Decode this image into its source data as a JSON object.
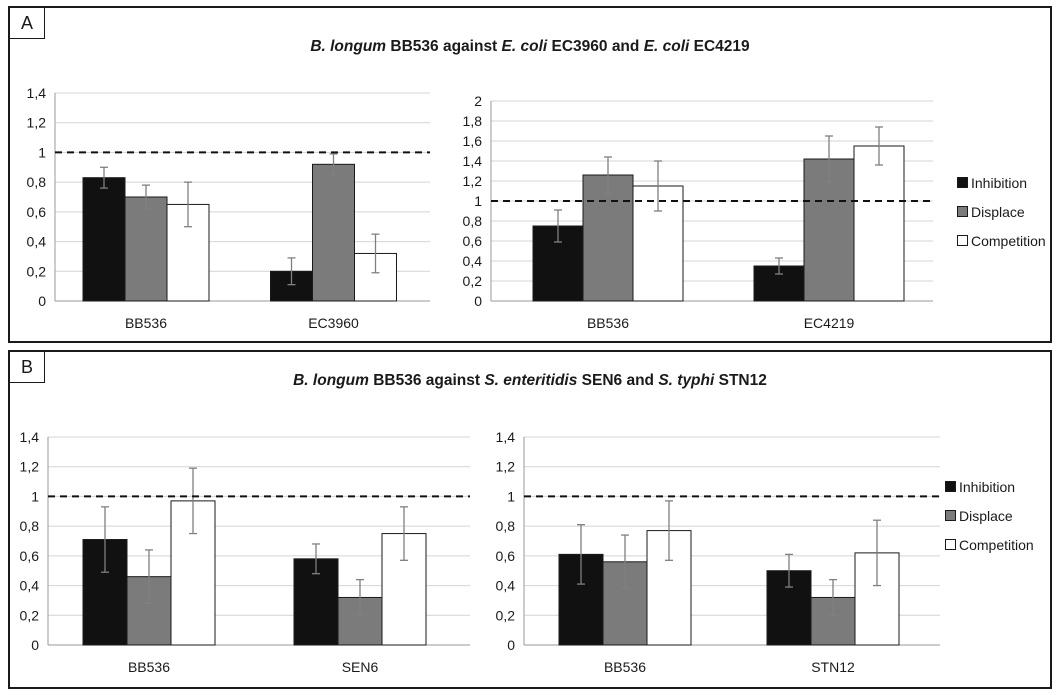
{
  "colors": {
    "inhibition": "#111111",
    "displace": "#7b7b7b",
    "competition": "#ffffff",
    "grid": "#d4d4d4",
    "axis": "#9a9a9a"
  },
  "legend_labels": [
    "Inhibition",
    "Displace",
    "Competition"
  ],
  "panels": [
    {
      "letter": "A",
      "title": {
        "t1": "B. longum",
        "t2": " BB536 against ",
        "t3": "E. coli",
        "t4": " EC3960 and ",
        "t5": "E. coli",
        "t6": " EC4219"
      }
    },
    {
      "letter": "B",
      "title": {
        "t1": "B. longum",
        "t2": " BB536 against ",
        "t3": "S. enteritidis",
        "t4": " SEN6 and ",
        "t5": "S. typhi",
        "t6": " STN12"
      }
    }
  ],
  "chart_data": [
    {
      "type": "bar",
      "categories": [
        "BB536",
        "EC3960"
      ],
      "ylim": [
        0,
        1.4
      ],
      "yticks": [
        "0",
        "0,2",
        "0,4",
        "0,6",
        "0,8",
        "1",
        "1,2",
        "1,4"
      ],
      "reference_line": 1,
      "grid": true,
      "series": [
        {
          "name": "Inhibition",
          "values": [
            0.83,
            0.2
          ],
          "errors": [
            0.07,
            0.09
          ]
        },
        {
          "name": "Displace",
          "values": [
            0.7,
            0.92
          ],
          "errors": [
            0.08,
            0.07
          ]
        },
        {
          "name": "Competition",
          "values": [
            0.65,
            0.32
          ],
          "errors": [
            0.15,
            0.13
          ]
        }
      ]
    },
    {
      "type": "bar",
      "categories": [
        "BB536",
        "EC4219"
      ],
      "ylim": [
        0,
        2
      ],
      "yticks": [
        "0",
        "0,2",
        "0,4",
        "0,6",
        "0,8",
        "1",
        "1,2",
        "1,4",
        "1,6",
        "1,8",
        "2"
      ],
      "reference_line": 1,
      "grid": true,
      "legend": "right",
      "series": [
        {
          "name": "Inhibition",
          "values": [
            0.75,
            0.35
          ],
          "errors": [
            0.16,
            0.08
          ]
        },
        {
          "name": "Displace",
          "values": [
            1.26,
            1.42
          ],
          "errors": [
            0.18,
            0.23
          ]
        },
        {
          "name": "Competition",
          "values": [
            1.15,
            1.55
          ],
          "errors": [
            0.25,
            0.19
          ]
        }
      ]
    },
    {
      "type": "bar",
      "categories": [
        "BB536",
        "SEN6"
      ],
      "ylim": [
        0,
        1.4
      ],
      "yticks": [
        "0",
        "0,2",
        "0,4",
        "0,6",
        "0,8",
        "1",
        "1,2",
        "1,4"
      ],
      "reference_line": 1,
      "grid": true,
      "series": [
        {
          "name": "Inhibition",
          "values": [
            0.71,
            0.58
          ],
          "errors": [
            0.22,
            0.1
          ]
        },
        {
          "name": "Displace",
          "values": [
            0.46,
            0.32
          ],
          "errors": [
            0.18,
            0.12
          ]
        },
        {
          "name": "Competition",
          "values": [
            0.97,
            0.75
          ],
          "errors": [
            0.22,
            0.18
          ]
        }
      ]
    },
    {
      "type": "bar",
      "categories": [
        "BB536",
        "STN12"
      ],
      "ylim": [
        0,
        1.4
      ],
      "yticks": [
        "0",
        "0,2",
        "0,4",
        "0,6",
        "0,8",
        "1",
        "1,2",
        "1,4"
      ],
      "reference_line": 1,
      "grid": true,
      "legend": "right",
      "series": [
        {
          "name": "Inhibition",
          "values": [
            0.61,
            0.5
          ],
          "errors": [
            0.2,
            0.11
          ]
        },
        {
          "name": "Displace",
          "values": [
            0.56,
            0.32
          ],
          "errors": [
            0.18,
            0.12
          ]
        },
        {
          "name": "Competition",
          "values": [
            0.77,
            0.62
          ],
          "errors": [
            0.2,
            0.22
          ]
        }
      ]
    }
  ]
}
